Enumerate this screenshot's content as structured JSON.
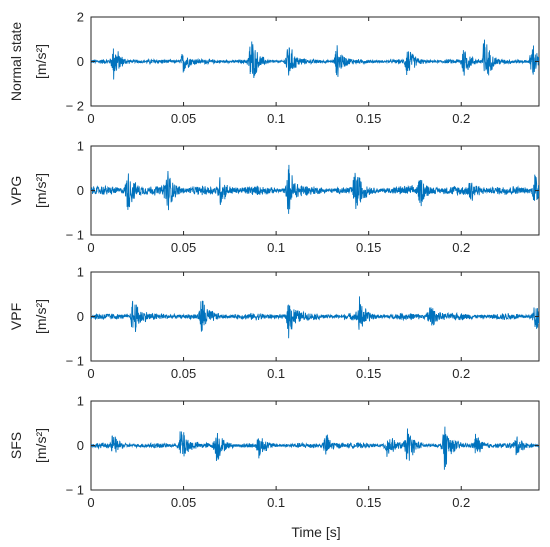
{
  "chart_data": {
    "type": "line",
    "xlabel": "Time [s]",
    "xlim": [
      0,
      0.242
    ],
    "x_ticks": [
      0,
      0.05,
      0.1,
      0.15,
      0.2
    ],
    "x_tick_labels": [
      "0",
      "0.05",
      "0.1",
      "0.15",
      "0.2"
    ],
    "line_color": "#0072BD",
    "panels": [
      {
        "ylabel": "Normal state",
        "yunit": "[m/s²]",
        "ylim": [
          -2,
          2
        ],
        "y_ticks": [
          -2,
          0,
          2
        ],
        "y_tick_labels": [
          "− 2",
          "0",
          "2"
        ],
        "bursts": [
          {
            "t": 0.0125,
            "amp": 1.0
          },
          {
            "t": 0.05,
            "amp": 0.6
          },
          {
            "t": 0.0865,
            "amp": 1.3
          },
          {
            "t": 0.1065,
            "amp": 1.1
          },
          {
            "t": 0.133,
            "amp": 0.8
          },
          {
            "t": 0.171,
            "amp": 0.8
          },
          {
            "t": 0.2015,
            "amp": 0.8
          },
          {
            "t": 0.2125,
            "amp": 1.4
          },
          {
            "t": 0.2385,
            "amp": 1.0
          }
        ],
        "noise": 0.12
      },
      {
        "ylabel": "VPG",
        "yunit": "[m/s²]",
        "ylim": [
          -1,
          1
        ],
        "y_ticks": [
          -1,
          0,
          1
        ],
        "y_tick_labels": [
          "− 1",
          "0",
          "1"
        ],
        "bursts": [
          {
            "t": 0.02,
            "amp": 0.55
          },
          {
            "t": 0.041,
            "amp": 0.6
          },
          {
            "t": 0.07,
            "amp": 0.35
          },
          {
            "t": 0.107,
            "amp": 0.6
          },
          {
            "t": 0.143,
            "amp": 0.55
          },
          {
            "t": 0.178,
            "amp": 0.35
          },
          {
            "t": 0.205,
            "amp": 0.3
          },
          {
            "t": 0.24,
            "amp": 0.55
          }
        ],
        "noise": 0.12
      },
      {
        "ylabel": "VPF",
        "yunit": "[m/s²]",
        "ylim": [
          -1,
          1
        ],
        "y_ticks": [
          -1,
          0,
          1
        ],
        "y_tick_labels": [
          "− 1",
          "0",
          "1"
        ],
        "bursts": [
          {
            "t": 0.023,
            "amp": 0.55
          },
          {
            "t": 0.06,
            "amp": 0.45
          },
          {
            "t": 0.107,
            "amp": 0.5
          },
          {
            "t": 0.145,
            "amp": 0.45
          },
          {
            "t": 0.183,
            "amp": 0.35
          },
          {
            "t": 0.24,
            "amp": 0.4
          }
        ],
        "noise": 0.09
      },
      {
        "ylabel": "SFS",
        "yunit": "[m/s²]",
        "ylim": [
          -1,
          1
        ],
        "y_ticks": [
          -1,
          0,
          1
        ],
        "y_tick_labels": [
          "− 1",
          "0",
          "1"
        ],
        "bursts": [
          {
            "t": 0.012,
            "amp": 0.25
          },
          {
            "t": 0.049,
            "amp": 0.55
          },
          {
            "t": 0.068,
            "amp": 0.45
          },
          {
            "t": 0.091,
            "amp": 0.3
          },
          {
            "t": 0.127,
            "amp": 0.3
          },
          {
            "t": 0.16,
            "amp": 0.35
          },
          {
            "t": 0.171,
            "amp": 0.45
          },
          {
            "t": 0.191,
            "amp": 0.6
          },
          {
            "t": 0.208,
            "amp": 0.3
          },
          {
            "t": 0.23,
            "amp": 0.25
          }
        ],
        "noise": 0.07
      }
    ]
  }
}
